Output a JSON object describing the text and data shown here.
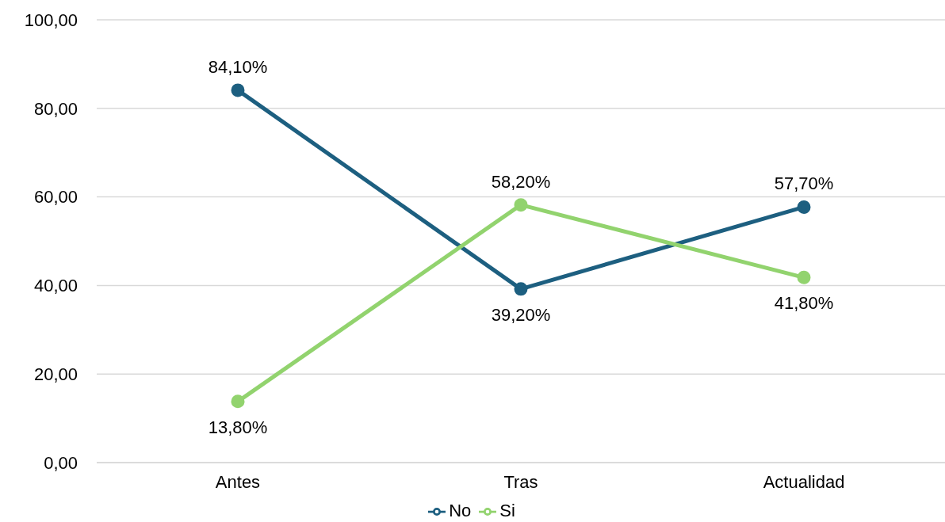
{
  "chart_data": {
    "type": "line",
    "categories": [
      "Antes",
      "Tras",
      "Actualidad"
    ],
    "series": [
      {
        "name": "No",
        "color": "#1d5f80",
        "values": [
          84.1,
          39.2,
          57.7
        ],
        "value_labels": [
          "84,10%",
          "39,20%",
          "57,70%"
        ]
      },
      {
        "name": "Si",
        "color": "#92d36e",
        "values": [
          13.8,
          58.2,
          41.8
        ],
        "value_labels": [
          "13,80%",
          "58,20%",
          "41,80%"
        ]
      }
    ],
    "ylim": [
      0,
      100
    ],
    "yticks": [
      {
        "value": 0,
        "label": "0,00"
      },
      {
        "value": 20,
        "label": "20,00"
      },
      {
        "value": 40,
        "label": "40,00"
      },
      {
        "value": 60,
        "label": "60,00"
      },
      {
        "value": 80,
        "label": "80,00"
      },
      {
        "value": 100,
        "label": "100,00"
      }
    ],
    "grid": "y",
    "legend": "bottom",
    "marker": "circle",
    "line_style": "solid"
  }
}
